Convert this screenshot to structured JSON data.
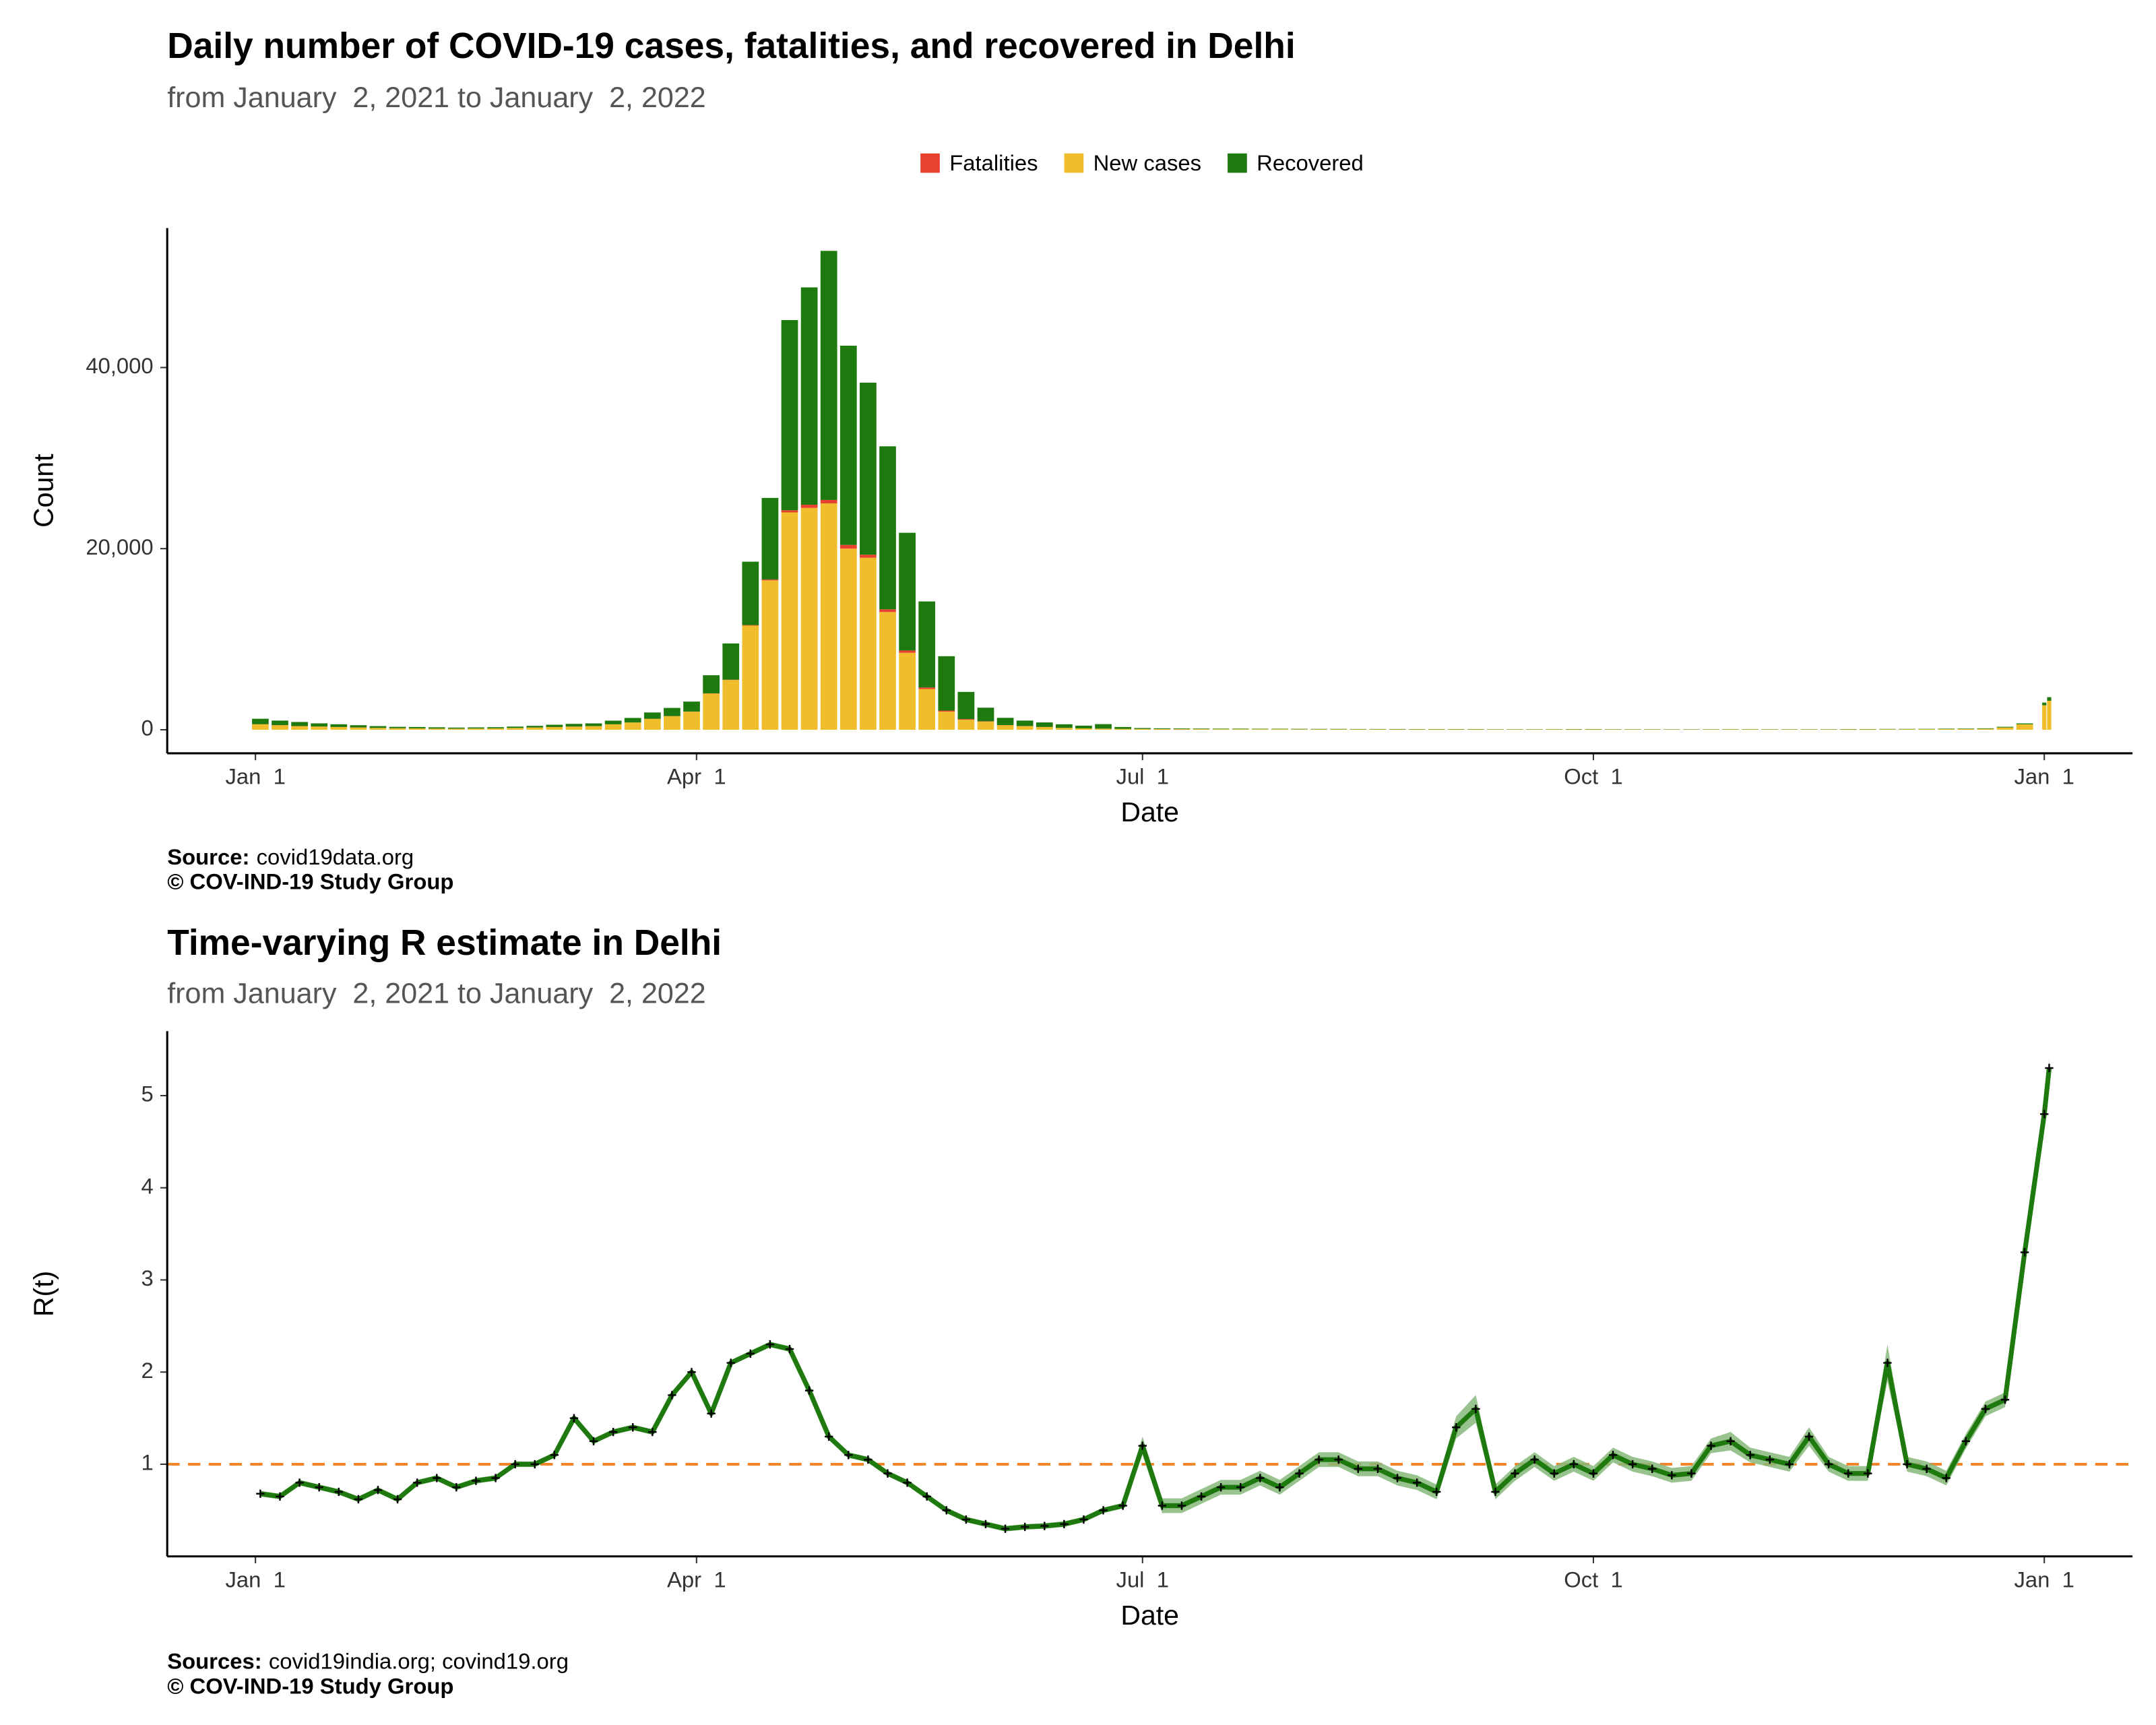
{
  "chart_data": [
    {
      "type": "bar",
      "title": "Daily number of COVID-19 cases, fatalities, and recovered in Delhi",
      "subtitle": "from January  2, 2021 to January  2, 2022",
      "x_label": "Date",
      "y_label": "Count",
      "caption_label": "Source:",
      "caption": "covid19data.org",
      "copyright": "© COV-IND-19 Study Group",
      "x": [
        "2021-01-02",
        "2021-01-06",
        "2021-01-10",
        "2021-01-14",
        "2021-01-18",
        "2021-01-22",
        "2021-01-26",
        "2021-01-30",
        "2021-02-03",
        "2021-02-07",
        "2021-02-11",
        "2021-02-15",
        "2021-02-19",
        "2021-02-23",
        "2021-02-27",
        "2021-03-03",
        "2021-03-07",
        "2021-03-11",
        "2021-03-15",
        "2021-03-19",
        "2021-03-23",
        "2021-03-27",
        "2021-03-31",
        "2021-04-04",
        "2021-04-08",
        "2021-04-12",
        "2021-04-16",
        "2021-04-20",
        "2021-04-24",
        "2021-04-28",
        "2021-05-02",
        "2021-05-06",
        "2021-05-10",
        "2021-05-14",
        "2021-05-18",
        "2021-05-22",
        "2021-05-26",
        "2021-05-30",
        "2021-06-03",
        "2021-06-07",
        "2021-06-11",
        "2021-06-15",
        "2021-06-19",
        "2021-06-23",
        "2021-06-27",
        "2021-07-01",
        "2021-07-05",
        "2021-07-09",
        "2021-07-13",
        "2021-07-17",
        "2021-07-21",
        "2021-07-25",
        "2021-07-29",
        "2021-08-02",
        "2021-08-06",
        "2021-08-10",
        "2021-08-14",
        "2021-08-18",
        "2021-08-22",
        "2021-08-26",
        "2021-08-30",
        "2021-09-03",
        "2021-09-07",
        "2021-09-11",
        "2021-09-15",
        "2021-09-19",
        "2021-09-23",
        "2021-09-27",
        "2021-10-01",
        "2021-10-05",
        "2021-10-09",
        "2021-10-13",
        "2021-10-17",
        "2021-10-21",
        "2021-10-25",
        "2021-10-29",
        "2021-11-02",
        "2021-11-06",
        "2021-11-10",
        "2021-11-14",
        "2021-11-18",
        "2021-11-22",
        "2021-11-26",
        "2021-11-30",
        "2021-12-04",
        "2021-12-08",
        "2021-12-12",
        "2021-12-16",
        "2021-12-20",
        "2021-12-24",
        "2021-12-28",
        "2022-01-01",
        "2022-01-02"
      ],
      "series": [
        {
          "name": "Fatalities",
          "color": "#e8412f",
          "values": [
            15,
            12,
            10,
            8,
            6,
            5,
            4,
            3,
            2,
            2,
            2,
            2,
            2,
            2,
            2,
            3,
            3,
            4,
            5,
            6,
            8,
            10,
            12,
            20,
            30,
            60,
            100,
            240,
            350,
            380,
            410,
            330,
            300,
            250,
            170,
            120,
            80,
            40,
            20,
            15,
            10,
            5,
            4,
            3,
            2,
            1,
            1,
            1,
            1,
            1,
            1,
            1,
            1,
            0,
            0,
            0,
            0,
            0,
            0,
            0,
            0,
            0,
            0,
            0,
            0,
            0,
            0,
            0,
            0,
            0,
            0,
            0,
            0,
            0,
            0,
            0,
            0,
            0,
            0,
            0,
            0,
            0,
            0,
            0,
            0,
            0,
            0,
            0,
            0,
            0,
            0,
            1,
            1
          ]
        },
        {
          "name": "New cases",
          "color": "#f0be2c",
          "values": [
            600,
            500,
            400,
            350,
            300,
            250,
            200,
            170,
            150,
            130,
            120,
            140,
            150,
            200,
            250,
            300,
            350,
            400,
            600,
            800,
            1200,
            1500,
            2000,
            4000,
            5500,
            11500,
            16500,
            24000,
            24500,
            25000,
            20000,
            19000,
            13000,
            8500,
            4500,
            2000,
            1100,
            900,
            500,
            400,
            300,
            200,
            150,
            120,
            100,
            90,
            80,
            70,
            70,
            60,
            60,
            60,
            60,
            50,
            50,
            50,
            45,
            45,
            40,
            40,
            40,
            40,
            40,
            35,
            35,
            35,
            40,
            40,
            40,
            35,
            35,
            35,
            30,
            30,
            35,
            40,
            40,
            35,
            35,
            35,
            35,
            40,
            40,
            50,
            55,
            60,
            70,
            90,
            100,
            250,
            600,
            2700,
            3200
          ]
        },
        {
          "name": "Recovered",
          "color": "#1e7a0e",
          "values": [
            600,
            500,
            450,
            350,
            300,
            250,
            200,
            150,
            150,
            140,
            120,
            120,
            130,
            150,
            180,
            250,
            300,
            300,
            400,
            500,
            700,
            900,
            1100,
            2000,
            4000,
            7000,
            9000,
            21000,
            24000,
            27500,
            22000,
            19000,
            18000,
            13000,
            9500,
            6000,
            3000,
            1500,
            800,
            600,
            500,
            400,
            300,
            500,
            200,
            100,
            80,
            70,
            60,
            60,
            60,
            50,
            50,
            50,
            45,
            45,
            40,
            40,
            40,
            35,
            35,
            35,
            35,
            30,
            30,
            30,
            30,
            35,
            35,
            30,
            30,
            30,
            30,
            30,
            30,
            30,
            30,
            30,
            30,
            30,
            30,
            35,
            35,
            40,
            40,
            40,
            50,
            50,
            60,
            80,
            100,
            300,
            400
          ]
        }
      ],
      "xlim": [
        "2020-12-14",
        "2022-01-19"
      ],
      "xticks": [
        {
          "value": "2021-01-01",
          "label": "Jan  1"
        },
        {
          "value": "2021-04-01",
          "label": "Apr  1"
        },
        {
          "value": "2021-07-01",
          "label": "Jul  1"
        },
        {
          "value": "2021-10-01",
          "label": "Oct  1"
        },
        {
          "value": "2022-01-01",
          "label": "Jan  1"
        }
      ],
      "ylim": [
        -2600,
        55400
      ],
      "yticks": [
        0,
        {
          "value": 20000,
          "label": "20,000"
        },
        {
          "value": 40000,
          "label": "40,000"
        }
      ],
      "legend": "top"
    },
    {
      "type": "line",
      "title": "Time-varying R estimate in Delhi",
      "subtitle": "from January  2, 2021 to January  2, 2022",
      "x_label": "Date",
      "y_label": "R(t)",
      "caption_label": "Sources:",
      "caption": "covid19india.org; covind19.org",
      "copyright": "© COV-IND-19 Study Group",
      "x": [
        "2021-01-02",
        "2021-01-06",
        "2021-01-10",
        "2021-01-14",
        "2021-01-18",
        "2021-01-22",
        "2021-01-26",
        "2021-01-30",
        "2021-02-03",
        "2021-02-07",
        "2021-02-11",
        "2021-02-15",
        "2021-02-19",
        "2021-02-23",
        "2021-02-27",
        "2021-03-03",
        "2021-03-07",
        "2021-03-11",
        "2021-03-15",
        "2021-03-19",
        "2021-03-23",
        "2021-03-27",
        "2021-03-31",
        "2021-04-04",
        "2021-04-08",
        "2021-04-12",
        "2021-04-16",
        "2021-04-20",
        "2021-04-24",
        "2021-04-28",
        "2021-05-02",
        "2021-05-06",
        "2021-05-10",
        "2021-05-14",
        "2021-05-18",
        "2021-05-22",
        "2021-05-26",
        "2021-05-30",
        "2021-06-03",
        "2021-06-07",
        "2021-06-11",
        "2021-06-15",
        "2021-06-19",
        "2021-06-23",
        "2021-06-27",
        "2021-07-01",
        "2021-07-05",
        "2021-07-09",
        "2021-07-13",
        "2021-07-17",
        "2021-07-21",
        "2021-07-25",
        "2021-07-29",
        "2021-08-02",
        "2021-08-06",
        "2021-08-10",
        "2021-08-14",
        "2021-08-18",
        "2021-08-22",
        "2021-08-26",
        "2021-08-30",
        "2021-09-03",
        "2021-09-07",
        "2021-09-11",
        "2021-09-15",
        "2021-09-19",
        "2021-09-23",
        "2021-09-27",
        "2021-10-01",
        "2021-10-05",
        "2021-10-09",
        "2021-10-13",
        "2021-10-17",
        "2021-10-21",
        "2021-10-25",
        "2021-10-29",
        "2021-11-02",
        "2021-11-06",
        "2021-11-10",
        "2021-11-14",
        "2021-11-18",
        "2021-11-22",
        "2021-11-26",
        "2021-11-30",
        "2021-12-04",
        "2021-12-08",
        "2021-12-12",
        "2021-12-16",
        "2021-12-20",
        "2021-12-24",
        "2021-12-28",
        "2022-01-01",
        "2022-01-02"
      ],
      "values": [
        0.68,
        0.65,
        0.8,
        0.75,
        0.7,
        0.62,
        0.72,
        0.62,
        0.8,
        0.85,
        0.75,
        0.82,
        0.85,
        1.0,
        1.0,
        1.1,
        1.5,
        1.25,
        1.35,
        1.4,
        1.35,
        1.75,
        2.0,
        1.55,
        2.1,
        2.2,
        2.3,
        2.25,
        1.8,
        1.3,
        1.1,
        1.05,
        0.9,
        0.8,
        0.65,
        0.5,
        0.4,
        0.35,
        0.3,
        0.32,
        0.33,
        0.35,
        0.4,
        0.5,
        0.55,
        1.2,
        0.55,
        0.55,
        0.65,
        0.75,
        0.75,
        0.85,
        0.75,
        0.9,
        1.05,
        1.05,
        0.95,
        0.95,
        0.85,
        0.8,
        0.7,
        1.4,
        1.6,
        0.7,
        0.9,
        1.05,
        0.9,
        1.0,
        0.9,
        1.1,
        1.0,
        0.95,
        0.88,
        0.9,
        1.2,
        1.25,
        1.1,
        1.05,
        1.0,
        1.3,
        1.0,
        0.9,
        0.9,
        2.1,
        1.0,
        0.95,
        0.85,
        1.25,
        1.6,
        1.7,
        3.3,
        4.8,
        5.3
      ],
      "lower": [
        0.65,
        0.62,
        0.77,
        0.72,
        0.67,
        0.59,
        0.69,
        0.59,
        0.77,
        0.82,
        0.72,
        0.79,
        0.82,
        0.97,
        0.97,
        1.07,
        1.47,
        1.22,
        1.32,
        1.37,
        1.32,
        1.72,
        1.97,
        1.52,
        2.07,
        2.17,
        2.27,
        2.22,
        1.77,
        1.27,
        1.07,
        1.02,
        0.87,
        0.77,
        0.62,
        0.47,
        0.37,
        0.32,
        0.27,
        0.29,
        0.3,
        0.32,
        0.37,
        0.47,
        0.52,
        1.1,
        0.47,
        0.47,
        0.57,
        0.67,
        0.67,
        0.77,
        0.67,
        0.82,
        0.97,
        0.97,
        0.87,
        0.87,
        0.77,
        0.72,
        0.62,
        1.28,
        1.45,
        0.62,
        0.82,
        0.97,
        0.82,
        0.92,
        0.82,
        1.02,
        0.92,
        0.87,
        0.8,
        0.82,
        1.12,
        1.15,
        1.02,
        0.97,
        0.92,
        1.2,
        0.92,
        0.82,
        0.82,
        1.9,
        0.92,
        0.87,
        0.77,
        1.17,
        1.52,
        1.62,
        3.2,
        4.7,
        5.2
      ],
      "upper": [
        0.71,
        0.68,
        0.83,
        0.78,
        0.73,
        0.65,
        0.75,
        0.65,
        0.83,
        0.88,
        0.78,
        0.85,
        0.88,
        1.03,
        1.03,
        1.13,
        1.53,
        1.28,
        1.38,
        1.43,
        1.38,
        1.78,
        2.03,
        1.58,
        2.13,
        2.23,
        2.33,
        2.28,
        1.83,
        1.33,
        1.13,
        1.08,
        0.93,
        0.83,
        0.68,
        0.53,
        0.43,
        0.38,
        0.33,
        0.35,
        0.36,
        0.38,
        0.43,
        0.53,
        0.58,
        1.3,
        0.63,
        0.63,
        0.73,
        0.83,
        0.83,
        0.93,
        0.83,
        0.98,
        1.13,
        1.13,
        1.03,
        1.03,
        0.93,
        0.88,
        0.78,
        1.52,
        1.75,
        0.78,
        0.98,
        1.13,
        0.98,
        1.08,
        0.98,
        1.18,
        1.08,
        1.03,
        0.96,
        0.98,
        1.28,
        1.35,
        1.18,
        1.13,
        1.08,
        1.4,
        1.08,
        0.98,
        0.98,
        2.3,
        1.08,
        1.03,
        0.93,
        1.33,
        1.68,
        1.78,
        3.4,
        4.9,
        5.4
      ],
      "color": "#1e7a0e",
      "band_color": "#86b97a",
      "marker_color": "#000000",
      "reference_line": 1,
      "reference_color": "#f2852a",
      "xlim": [
        "2020-12-14",
        "2022-01-19"
      ],
      "xticks": [
        {
          "value": "2021-01-01",
          "label": "Jan  1"
        },
        {
          "value": "2021-04-01",
          "label": "Apr  1"
        },
        {
          "value": "2021-07-01",
          "label": "Jul  1"
        },
        {
          "value": "2021-10-01",
          "label": "Oct  1"
        },
        {
          "value": "2022-01-01",
          "label": "Jan  1"
        }
      ],
      "ylim": [
        0,
        5.7
      ],
      "yticks": [
        1,
        2,
        3,
        4,
        5
      ]
    }
  ]
}
